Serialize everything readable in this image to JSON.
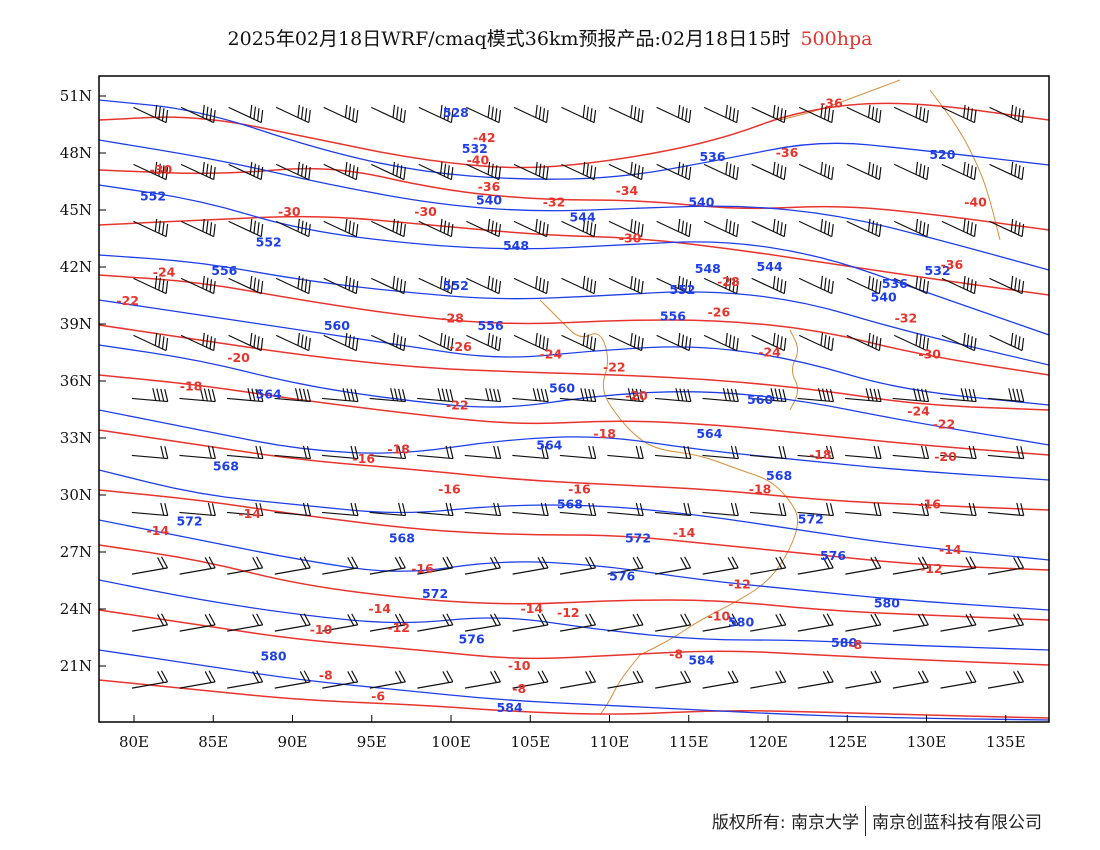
{
  "title": {
    "main": "2025年02月18日WRF/cmaq模式36km预报产品:02月18日15时",
    "level": "500hpa",
    "level_color": "#e8342c"
  },
  "colors": {
    "height_contour": "#1d3ee8",
    "temperature_contour": "#e8342c",
    "coastline": "#d4903c",
    "wind_barb": "#111111"
  },
  "axes": {
    "lat_labels": [
      "51N",
      "48N",
      "45N",
      "42N",
      "39N",
      "36N",
      "33N",
      "30N",
      "27N",
      "24N",
      "21N"
    ],
    "lat_values": [
      51,
      48,
      45,
      42,
      39,
      36,
      33,
      30,
      27,
      24,
      21
    ],
    "lon_labels": [
      "80E",
      "85E",
      "90E",
      "95E",
      "100E",
      "105E",
      "110E",
      "115E",
      "120E",
      "125E",
      "130E",
      "135E"
    ],
    "lon_values": [
      80,
      85,
      90,
      95,
      100,
      105,
      110,
      115,
      120,
      125,
      130,
      135
    ],
    "lon_range": [
      78,
      138
    ],
    "lat_range": [
      18.5,
      52.5
    ]
  },
  "height_labels": [
    {
      "text": "528",
      "lon": 100.3,
      "lat": 50.1
    },
    {
      "text": "532",
      "lon": 101.5,
      "lat": 48.2
    },
    {
      "text": "536",
      "lon": 116.5,
      "lat": 47.8
    },
    {
      "text": "520",
      "lon": 131,
      "lat": 47.9
    },
    {
      "text": "552",
      "lon": 81.2,
      "lat": 45.7
    },
    {
      "text": "540",
      "lon": 102.4,
      "lat": 45.5
    },
    {
      "text": "544",
      "lon": 108.3,
      "lat": 44.6
    },
    {
      "text": "540",
      "lon": 115.8,
      "lat": 45.4
    },
    {
      "text": "552",
      "lon": 88.5,
      "lat": 43.3
    },
    {
      "text": "548",
      "lon": 104.1,
      "lat": 43.1
    },
    {
      "text": "556",
      "lon": 85.7,
      "lat": 41.8
    },
    {
      "text": "548",
      "lon": 116.2,
      "lat": 41.9
    },
    {
      "text": "544",
      "lon": 120.1,
      "lat": 42.0
    },
    {
      "text": "532",
      "lon": 130.7,
      "lat": 41.8
    },
    {
      "text": "536",
      "lon": 128,
      "lat": 41.1
    },
    {
      "text": "552",
      "lon": 100.3,
      "lat": 41.0
    },
    {
      "text": "552",
      "lon": 114.6,
      "lat": 40.8
    },
    {
      "text": "540",
      "lon": 127.3,
      "lat": 40.4
    },
    {
      "text": "560",
      "lon": 92.8,
      "lat": 38.9
    },
    {
      "text": "556",
      "lon": 102.5,
      "lat": 38.9
    },
    {
      "text": "556",
      "lon": 114,
      "lat": 39.4
    },
    {
      "text": "560",
      "lon": 107,
      "lat": 35.6
    },
    {
      "text": "564",
      "lon": 88.5,
      "lat": 35.3
    },
    {
      "text": "560",
      "lon": 119.5,
      "lat": 35.0
    },
    {
      "text": "564",
      "lon": 106.2,
      "lat": 32.6
    },
    {
      "text": "564",
      "lon": 116.3,
      "lat": 33.2
    },
    {
      "text": "568",
      "lon": 85.8,
      "lat": 31.5
    },
    {
      "text": "568",
      "lon": 120.7,
      "lat": 31.0
    },
    {
      "text": "568",
      "lon": 107.5,
      "lat": 29.5
    },
    {
      "text": "572",
      "lon": 83.5,
      "lat": 28.6
    },
    {
      "text": "572",
      "lon": 122.7,
      "lat": 28.7
    },
    {
      "text": "568",
      "lon": 96.9,
      "lat": 27.7
    },
    {
      "text": "572",
      "lon": 111.8,
      "lat": 27.7
    },
    {
      "text": "576",
      "lon": 124.1,
      "lat": 26.8
    },
    {
      "text": "576",
      "lon": 110.8,
      "lat": 25.7
    },
    {
      "text": "572",
      "lon": 99,
      "lat": 24.8
    },
    {
      "text": "580",
      "lon": 118.3,
      "lat": 23.3
    },
    {
      "text": "580",
      "lon": 127.5,
      "lat": 24.3
    },
    {
      "text": "576",
      "lon": 101.3,
      "lat": 22.4
    },
    {
      "text": "580",
      "lon": 88.8,
      "lat": 21.5
    },
    {
      "text": "580",
      "lon": 124.8,
      "lat": 22.2
    },
    {
      "text": "584",
      "lon": 115.8,
      "lat": 21.3
    },
    {
      "text": "584",
      "lon": 103.7,
      "lat": 18.8
    }
  ],
  "temperature_labels": [
    {
      "text": "-36",
      "lon": 124,
      "lat": 50.6
    },
    {
      "text": "-42",
      "lon": 102.1,
      "lat": 48.8
    },
    {
      "text": "-36",
      "lon": 121.2,
      "lat": 48.0
    },
    {
      "text": "-40",
      "lon": 101.7,
      "lat": 47.6
    },
    {
      "text": "-30",
      "lon": 81.7,
      "lat": 47.1
    },
    {
      "text": "-36",
      "lon": 102.4,
      "lat": 46.2
    },
    {
      "text": "-34",
      "lon": 111.1,
      "lat": 46.0
    },
    {
      "text": "-32",
      "lon": 106.5,
      "lat": 45.4
    },
    {
      "text": "-40",
      "lon": 133.1,
      "lat": 45.4
    },
    {
      "text": "-30",
      "lon": 89.8,
      "lat": 44.9
    },
    {
      "text": "-30",
      "lon": 98.4,
      "lat": 44.9
    },
    {
      "text": "-30",
      "lon": 111.3,
      "lat": 43.5
    },
    {
      "text": "-36",
      "lon": 131.6,
      "lat": 42.1
    },
    {
      "text": "-24",
      "lon": 81.9,
      "lat": 41.7
    },
    {
      "text": "-28",
      "lon": 117.5,
      "lat": 41.2
    },
    {
      "text": "-22",
      "lon": 79.6,
      "lat": 40.2
    },
    {
      "text": "-26",
      "lon": 116.9,
      "lat": 39.6
    },
    {
      "text": "-28",
      "lon": 100.1,
      "lat": 39.3
    },
    {
      "text": "-32",
      "lon": 128.7,
      "lat": 39.3
    },
    {
      "text": "-26",
      "lon": 100.6,
      "lat": 37.8
    },
    {
      "text": "-24",
      "lon": 106.3,
      "lat": 37.4
    },
    {
      "text": "-20",
      "lon": 86.6,
      "lat": 37.2
    },
    {
      "text": "-24",
      "lon": 120.1,
      "lat": 37.5
    },
    {
      "text": "-30",
      "lon": 130.2,
      "lat": 37.4
    },
    {
      "text": "-22",
      "lon": 110.3,
      "lat": 36.7
    },
    {
      "text": "-18",
      "lon": 83.6,
      "lat": 35.7
    },
    {
      "text": "-20",
      "lon": 111.7,
      "lat": 35.2
    },
    {
      "text": "-22",
      "lon": 100.4,
      "lat": 34.7
    },
    {
      "text": "-24",
      "lon": 129.5,
      "lat": 34.4
    },
    {
      "text": "-18",
      "lon": 109.7,
      "lat": 33.2
    },
    {
      "text": "-22",
      "lon": 131.1,
      "lat": 33.7
    },
    {
      "text": "-18",
      "lon": 96.7,
      "lat": 32.4
    },
    {
      "text": "-16",
      "lon": 94.5,
      "lat": 31.9
    },
    {
      "text": "-18",
      "lon": 123.3,
      "lat": 32.1
    },
    {
      "text": "-20",
      "lon": 131.2,
      "lat": 32.0
    },
    {
      "text": "-16",
      "lon": 99.9,
      "lat": 30.3
    },
    {
      "text": "-16",
      "lon": 108.1,
      "lat": 30.3
    },
    {
      "text": "-18",
      "lon": 119.5,
      "lat": 30.3
    },
    {
      "text": "-16",
      "lon": 130.2,
      "lat": 29.5
    },
    {
      "text": "-14",
      "lon": 87.3,
      "lat": 29.0
    },
    {
      "text": "-14",
      "lon": 81.5,
      "lat": 28.1
    },
    {
      "text": "-14",
      "lon": 114.7,
      "lat": 28.0
    },
    {
      "text": "-14",
      "lon": 131.5,
      "lat": 27.1
    },
    {
      "text": "-16",
      "lon": 98.2,
      "lat": 26.1
    },
    {
      "text": "-12",
      "lon": 118.2,
      "lat": 25.3
    },
    {
      "text": "-12",
      "lon": 130.3,
      "lat": 26.1
    },
    {
      "text": "-14",
      "lon": 95.5,
      "lat": 24.0
    },
    {
      "text": "-14",
      "lon": 105.1,
      "lat": 24.0
    },
    {
      "text": "-12",
      "lon": 107.4,
      "lat": 23.8
    },
    {
      "text": "-10",
      "lon": 116.9,
      "lat": 23.6
    },
    {
      "text": "-12",
      "lon": 96.7,
      "lat": 23.0
    },
    {
      "text": "-10",
      "lon": 91.8,
      "lat": 22.9
    },
    {
      "text": "-8",
      "lon": 125.5,
      "lat": 22.1
    },
    {
      "text": "-8",
      "lon": 114.2,
      "lat": 21.6
    },
    {
      "text": "-10",
      "lon": 104.3,
      "lat": 21.0
    },
    {
      "text": "-8",
      "lon": 92.1,
      "lat": 20.5
    },
    {
      "text": "-8",
      "lon": 104.3,
      "lat": 19.8
    },
    {
      "text": "-6",
      "lon": 95.4,
      "lat": 19.4
    }
  ],
  "footer": {
    "copyright": "版权所有: 南京大学",
    "company": "南京创蓝科技有限公司"
  }
}
